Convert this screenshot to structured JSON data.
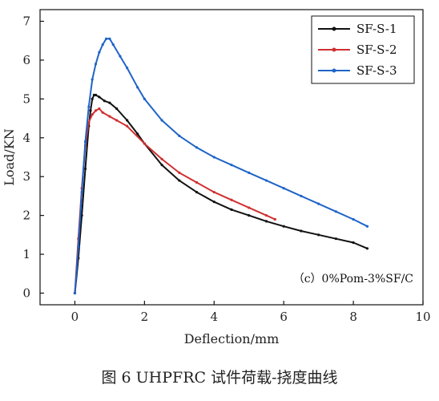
{
  "caption": "图 6 UHPFRC 试件荷载-挠度曲线",
  "chart_data": {
    "type": "line",
    "xlabel": "Deflection/mm",
    "ylabel": "Load/KN",
    "xlim": [
      -1,
      10
    ],
    "ylim": [
      -0.3,
      7.3
    ],
    "xticks": [
      0,
      2,
      4,
      6,
      8,
      10
    ],
    "yticks": [
      0,
      1,
      2,
      3,
      4,
      5,
      6,
      7
    ],
    "grid": false,
    "legend_position": "top-right",
    "annotation": "（c）0%Pom-3%SF/C",
    "series": [
      {
        "name": "SF-S-1",
        "color": "#111111",
        "x": [
          0,
          0.1,
          0.2,
          0.3,
          0.4,
          0.45,
          0.5,
          0.55,
          0.6,
          0.7,
          0.85,
          1.0,
          1.2,
          1.5,
          1.8,
          2.0,
          2.5,
          3.0,
          3.5,
          4.0,
          4.5,
          5.0,
          5.5,
          6.0,
          6.5,
          7.0,
          7.5,
          8.0,
          8.4
        ],
        "y": [
          0,
          0.9,
          2.0,
          3.2,
          4.3,
          4.7,
          5.0,
          5.1,
          5.1,
          5.05,
          4.95,
          4.9,
          4.75,
          4.45,
          4.1,
          3.85,
          3.3,
          2.9,
          2.6,
          2.35,
          2.15,
          2.0,
          1.85,
          1.72,
          1.6,
          1.5,
          1.4,
          1.3,
          1.15
        ]
      },
      {
        "name": "SF-S-2",
        "color": "#d03030",
        "x": [
          0,
          0.1,
          0.2,
          0.3,
          0.4,
          0.5,
          0.6,
          0.7,
          0.8,
          1.0,
          1.2,
          1.5,
          2.0,
          2.5,
          3.0,
          3.5,
          4.0,
          4.5,
          5.0,
          5.5,
          5.75
        ],
        "y": [
          0,
          1.4,
          2.7,
          3.8,
          4.4,
          4.6,
          4.7,
          4.75,
          4.65,
          4.55,
          4.45,
          4.3,
          3.85,
          3.45,
          3.1,
          2.85,
          2.6,
          2.4,
          2.2,
          2.0,
          1.9
        ]
      },
      {
        "name": "SF-S-3",
        "color": "#1f64c8",
        "x": [
          0,
          0.1,
          0.2,
          0.3,
          0.4,
          0.5,
          0.6,
          0.7,
          0.8,
          0.9,
          1.0,
          1.1,
          1.3,
          1.5,
          1.8,
          2.0,
          2.5,
          3.0,
          3.5,
          4.0,
          4.5,
          5.0,
          5.5,
          6.0,
          6.5,
          7.0,
          7.5,
          8.0,
          8.4
        ],
        "y": [
          0,
          1.2,
          2.6,
          3.9,
          4.8,
          5.5,
          5.9,
          6.2,
          6.4,
          6.55,
          6.55,
          6.4,
          6.1,
          5.8,
          5.3,
          5.0,
          4.45,
          4.05,
          3.75,
          3.5,
          3.3,
          3.1,
          2.9,
          2.7,
          2.5,
          2.3,
          2.1,
          1.9,
          1.72
        ]
      }
    ]
  }
}
